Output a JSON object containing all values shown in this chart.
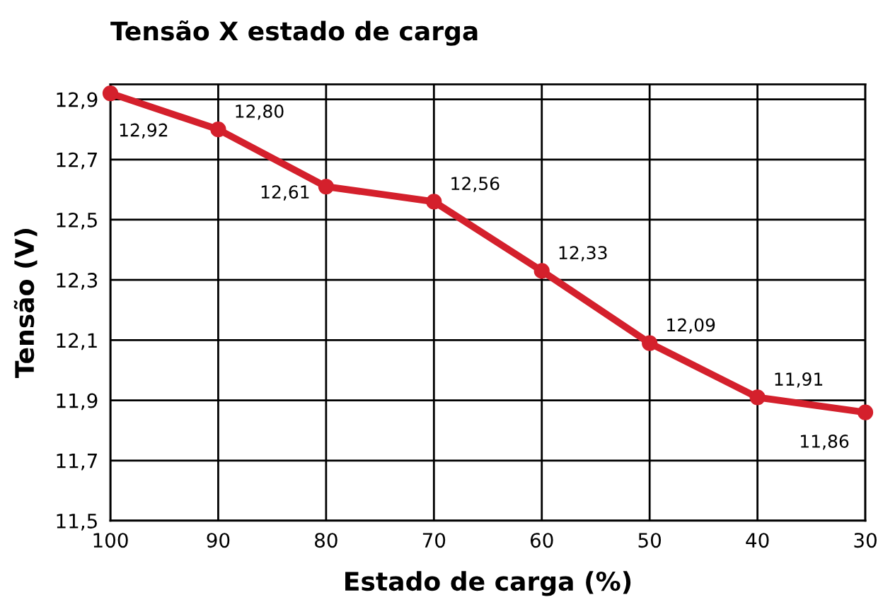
{
  "chart_data": {
    "type": "line",
    "title": "Tensão X estado de carga",
    "xlabel": "Estado de carga (%)",
    "ylabel": "Tensão (V)",
    "x": [
      100,
      90,
      80,
      70,
      60,
      50,
      40,
      30
    ],
    "series": [
      {
        "color": "#d4202c",
        "values": [
          12.92,
          12.8,
          12.61,
          12.56,
          12.33,
          12.09,
          11.91,
          11.86
        ],
        "value_labels": [
          "12,92",
          "12,80",
          "12,61",
          "12,56",
          "12,33",
          "12,09",
          "11,91",
          "11,86"
        ]
      }
    ],
    "xlim": [
      100,
      30
    ],
    "xticks": [
      100,
      90,
      80,
      70,
      60,
      50,
      40,
      30
    ],
    "ylim": [
      11.5,
      12.95
    ],
    "yticks": [
      {
        "value": 11.5,
        "label": "11,5"
      },
      {
        "value": 11.7,
        "label": "11,7"
      },
      {
        "value": 11.9,
        "label": "11,9"
      },
      {
        "value": 12.1,
        "label": "12,1"
      },
      {
        "value": 12.3,
        "label": "12,3"
      },
      {
        "value": 12.5,
        "label": "12,5"
      },
      {
        "value": 12.7,
        "label": "12,7"
      },
      {
        "value": 12.9,
        "label": "12,9"
      }
    ],
    "grid": true,
    "marker": "circle",
    "line_style": "solid"
  }
}
